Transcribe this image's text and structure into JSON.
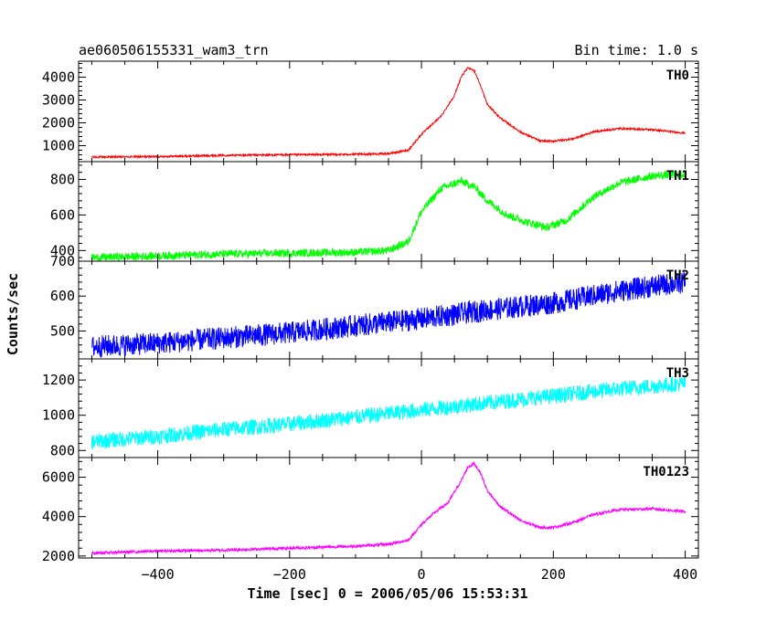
{
  "chart_data": {
    "type": "line",
    "title": "ae060506155331_wam3_trn",
    "bin_time_label": "Bin time: 1.0 s",
    "xlabel": "Time [sec] 0 = 2006/05/06 15:53:31",
    "ylabel": "Counts/sec",
    "xlim": [
      -520,
      420
    ],
    "x_ticks": [
      -400,
      -200,
      0,
      200,
      400
    ],
    "x_tick_labels": [
      "−400",
      "−200",
      "0",
      "200",
      "400"
    ],
    "series": [
      {
        "name": "TH0",
        "color": "#ff0000",
        "ylim": [
          300,
          4700
        ],
        "y_ticks": [
          1000,
          2000,
          3000,
          4000
        ],
        "noise": 40,
        "x": [
          -500,
          -400,
          -300,
          -200,
          -100,
          -50,
          -20,
          0,
          15,
          30,
          50,
          60,
          70,
          80,
          90,
          100,
          120,
          150,
          180,
          200,
          230,
          260,
          300,
          350,
          400
        ],
        "y": [
          500,
          520,
          580,
          600,
          620,
          650,
          800,
          1500,
          1900,
          2300,
          3200,
          4000,
          4400,
          4300,
          3600,
          2800,
          2200,
          1600,
          1200,
          1200,
          1300,
          1600,
          1750,
          1700,
          1550
        ]
      },
      {
        "name": "TH1",
        "color": "#00ff00",
        "ylim": [
          340,
          900
        ],
        "y_ticks": [
          400,
          600,
          800
        ],
        "noise": 22,
        "x": [
          -500,
          -400,
          -300,
          -200,
          -100,
          -50,
          -20,
          0,
          30,
          60,
          80,
          100,
          130,
          160,
          190,
          220,
          260,
          300,
          350,
          400
        ],
        "y": [
          360,
          370,
          380,
          385,
          390,
          400,
          450,
          620,
          750,
          790,
          760,
          680,
          600,
          560,
          530,
          570,
          700,
          780,
          820,
          830
        ]
      },
      {
        "name": "TH2",
        "color": "#0000ff",
        "ylim": [
          420,
          700
        ],
        "y_ticks": [
          500,
          600,
          700
        ],
        "noise": 32,
        "x": [
          -500,
          -400,
          -300,
          -200,
          -100,
          0,
          100,
          200,
          300,
          400
        ],
        "y": [
          455,
          465,
          480,
          495,
          515,
          535,
          560,
          580,
          615,
          640
        ]
      },
      {
        "name": "TH3",
        "color": "#00ffff",
        "ylim": [
          760,
          1320
        ],
        "y_ticks": [
          800,
          1000,
          1200
        ],
        "noise": 45,
        "x": [
          -500,
          -400,
          -300,
          -200,
          -100,
          0,
          100,
          200,
          300,
          400
        ],
        "y": [
          850,
          880,
          920,
          950,
          990,
          1030,
          1070,
          1110,
          1150,
          1180
        ]
      },
      {
        "name": "TH0123",
        "color": "#ff00ff",
        "ylim": [
          1900,
          7000
        ],
        "y_ticks": [
          2000,
          4000,
          6000
        ],
        "noise": 70,
        "x": [
          -500,
          -400,
          -300,
          -200,
          -100,
          -50,
          -20,
          0,
          20,
          40,
          60,
          70,
          80,
          90,
          100,
          120,
          150,
          180,
          200,
          230,
          260,
          300,
          350,
          400
        ],
        "y": [
          2150,
          2250,
          2300,
          2400,
          2500,
          2600,
          2800,
          3600,
          4200,
          4700,
          5800,
          6500,
          6700,
          6200,
          5300,
          4500,
          3800,
          3450,
          3450,
          3700,
          4100,
          4350,
          4400,
          4250
        ]
      }
    ]
  }
}
